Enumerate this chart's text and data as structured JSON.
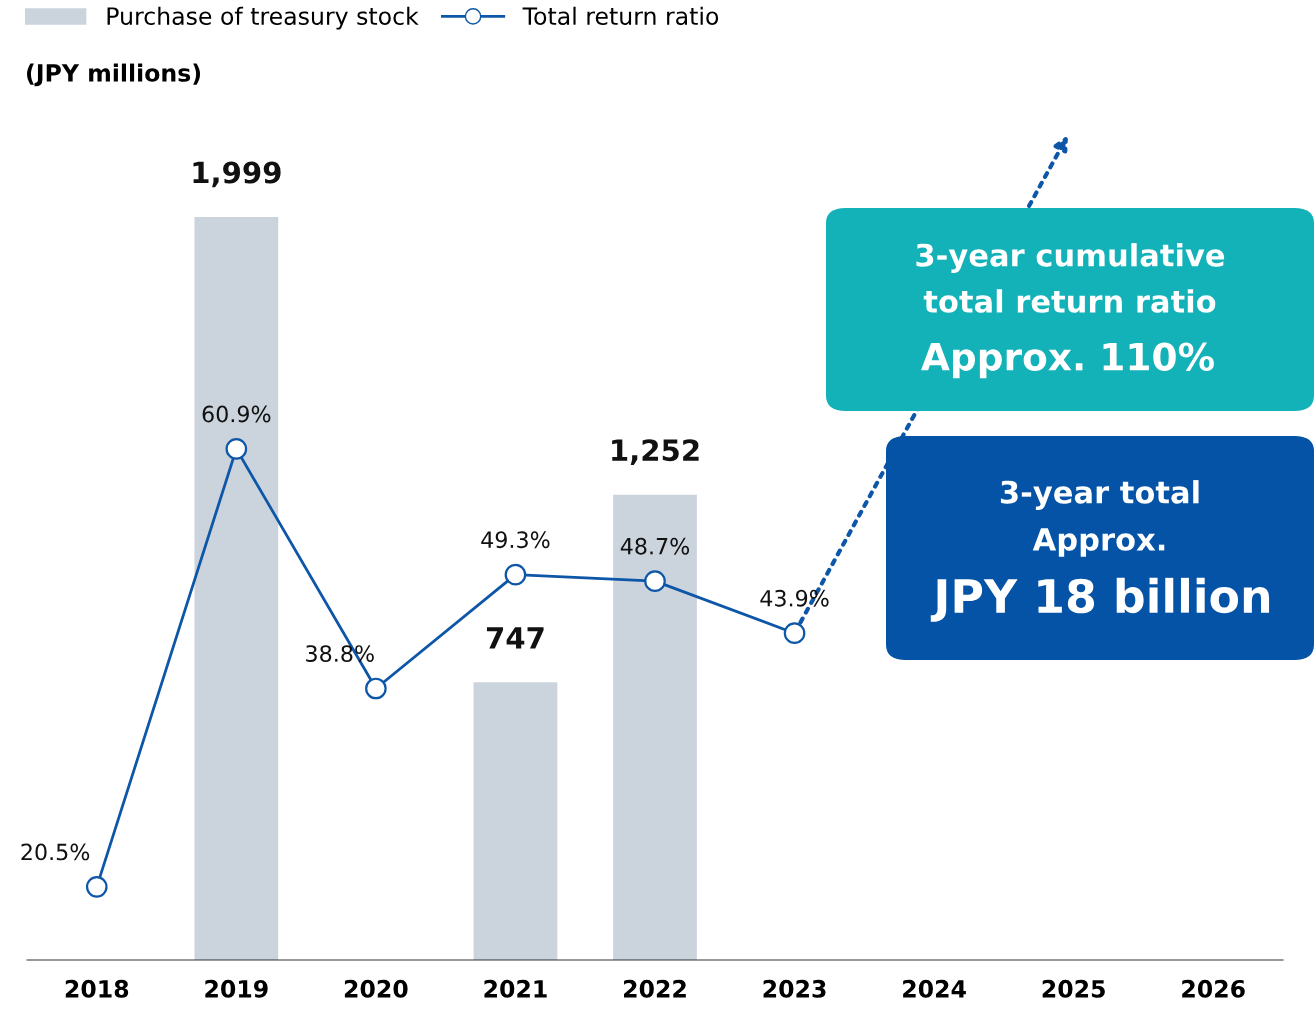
{
  "chart_data": {
    "type": "bar",
    "categories": [
      "2018",
      "2019",
      "2020",
      "2021",
      "2022",
      "2023",
      "2024",
      "2025",
      "2026"
    ],
    "series": [
      {
        "name": "Purchase of treasury stock",
        "color": "#cbd3dc",
        "values": [
          null,
          1999,
          null,
          747,
          1252,
          null,
          null,
          null,
          null
        ],
        "value_labels": [
          null,
          "1,999",
          null,
          "747",
          "1,252",
          null,
          null,
          null,
          null
        ]
      },
      {
        "name": "Total return ratio",
        "type": "line",
        "axis": "y2",
        "color": "#0d56a8",
        "marker": "circle",
        "values": [
          20.5,
          60.9,
          38.8,
          49.3,
          48.7,
          43.9,
          null,
          null,
          null
        ],
        "value_labels": [
          "20.5%",
          "60.9%",
          "38.8%",
          "49.3%",
          "48.7%",
          "43.9%",
          null,
          null,
          null
        ]
      }
    ],
    "annotations": [
      "(JPY millions)",
      "3-year cumulative",
      "total return ratio",
      "Approx. 110%",
      "3-year total",
      "Approx.",
      "JPY 18 billion"
    ],
    "legend": "top left",
    "tick_labels": "x",
    "grid": false
  }
}
